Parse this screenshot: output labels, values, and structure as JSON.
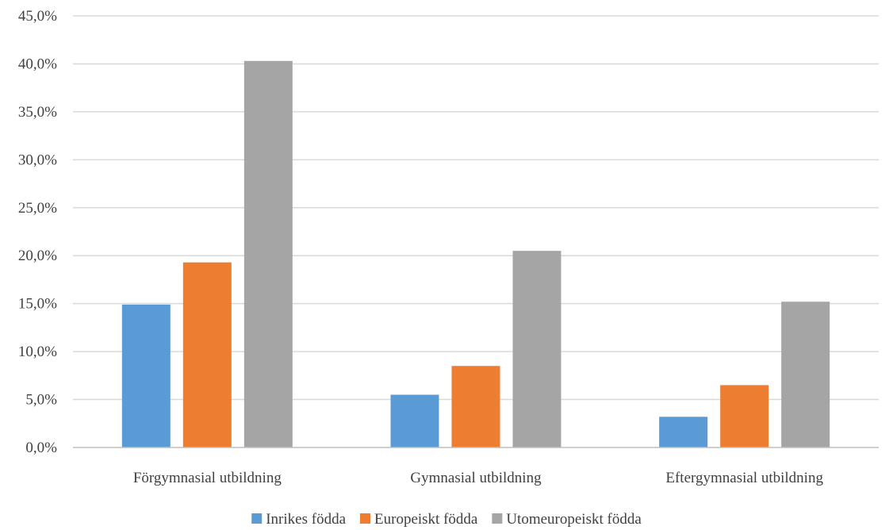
{
  "chart_data": {
    "type": "bar",
    "title": "",
    "xlabel": "",
    "ylabel": "",
    "categories": [
      "Förgymnasial utbildning",
      "Gymnasial utbildning",
      "Eftergymnasial utbildning"
    ],
    "series": [
      {
        "name": "Inrikes födda",
        "color": "#5b9bd5",
        "values": [
          14.9,
          5.5,
          3.2
        ]
      },
      {
        "name": "Europeiskt födda",
        "color": "#ed7d31",
        "values": [
          19.3,
          8.5,
          6.5
        ]
      },
      {
        "name": "Utomeuropeiskt födda",
        "color": "#a5a5a5",
        "values": [
          40.3,
          20.5,
          15.2
        ]
      }
    ],
    "ylim": [
      0,
      45
    ],
    "ytick_step": 5,
    "ytick_labels": [
      "0,0%",
      "5,0%",
      "10,0%",
      "15,0%",
      "20,0%",
      "25,0%",
      "30,0%",
      "35,0%",
      "40,0%",
      "45,0%"
    ],
    "grid": true,
    "legend_position": "bottom"
  }
}
